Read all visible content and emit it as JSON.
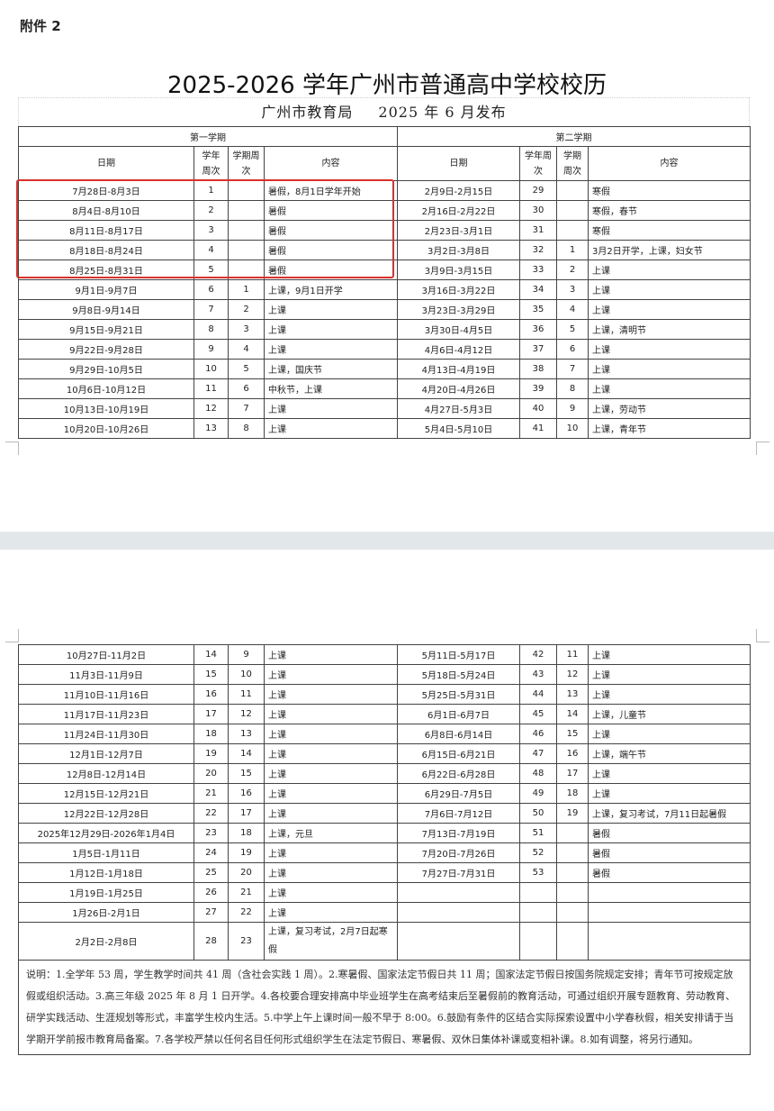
{
  "attachment": "附件 2",
  "title": "2025-2026 学年广州市普通高中学校校历",
  "subtitle": {
    "issuer": "广州市教育局",
    "date": "2025 年 6 月发布"
  },
  "headers": {
    "term1": "第一学期",
    "term2": "第二学期",
    "date": "日期",
    "year_week": "学年周次",
    "term_week": "学期周次",
    "content": "内容"
  },
  "page1_rows": [
    [
      "7月28日-8月3日",
      "1",
      "",
      "暑假，8月1日学年开始",
      "2月9日-2月15日",
      "29",
      "",
      "寒假"
    ],
    [
      "8月4日-8月10日",
      "2",
      "",
      "暑假",
      "2月16日-2月22日",
      "30",
      "",
      "寒假，春节"
    ],
    [
      "8月11日-8月17日",
      "3",
      "",
      "暑假",
      "2月23日-3月1日",
      "31",
      "",
      "寒假"
    ],
    [
      "8月18日-8月24日",
      "4",
      "",
      "暑假",
      "3月2日-3月8日",
      "32",
      "1",
      "3月2日开学，上课，妇女节"
    ],
    [
      "8月25日-8月31日",
      "5",
      "",
      "暑假",
      "3月9日-3月15日",
      "33",
      "2",
      "上课"
    ],
    [
      "9月1日-9月7日",
      "6",
      "1",
      "上课，9月1日开学",
      "3月16日-3月22日",
      "34",
      "3",
      "上课"
    ],
    [
      "9月8日-9月14日",
      "7",
      "2",
      "上课",
      "3月23日-3月29日",
      "35",
      "4",
      "上课"
    ],
    [
      "9月15日-9月21日",
      "8",
      "3",
      "上课",
      "3月30日-4月5日",
      "36",
      "5",
      "上课，清明节"
    ],
    [
      "9月22日-9月28日",
      "9",
      "4",
      "上课",
      "4月6日-4月12日",
      "37",
      "6",
      "上课"
    ],
    [
      "9月29日-10月5日",
      "10",
      "5",
      "上课，国庆节",
      "4月13日-4月19日",
      "38",
      "7",
      "上课"
    ],
    [
      "10月6日-10月12日",
      "11",
      "6",
      "中秋节，上课",
      "4月20日-4月26日",
      "39",
      "8",
      "上课"
    ],
    [
      "10月13日-10月19日",
      "12",
      "7",
      "上课",
      "4月27日-5月3日",
      "40",
      "9",
      "上课，劳动节"
    ],
    [
      "10月20日-10月26日",
      "13",
      "8",
      "上课",
      "5月4日-5月10日",
      "41",
      "10",
      "上课，青年节"
    ]
  ],
  "page2_rows": [
    [
      "10月27日-11月2日",
      "14",
      "9",
      "上课",
      "5月11日-5月17日",
      "42",
      "11",
      "上课"
    ],
    [
      "11月3日-11月9日",
      "15",
      "10",
      "上课",
      "5月18日-5月24日",
      "43",
      "12",
      "上课"
    ],
    [
      "11月10日-11月16日",
      "16",
      "11",
      "上课",
      "5月25日-5月31日",
      "44",
      "13",
      "上课"
    ],
    [
      "11月17日-11月23日",
      "17",
      "12",
      "上课",
      "6月1日-6月7日",
      "45",
      "14",
      "上课，儿童节"
    ],
    [
      "11月24日-11月30日",
      "18",
      "13",
      "上课",
      "6月8日-6月14日",
      "46",
      "15",
      "上课"
    ],
    [
      "12月1日-12月7日",
      "19",
      "14",
      "上课",
      "6月15日-6月21日",
      "47",
      "16",
      "上课，端午节"
    ],
    [
      "12月8日-12月14日",
      "20",
      "15",
      "上课",
      "6月22日-6月28日",
      "48",
      "17",
      "上课"
    ],
    [
      "12月15日-12月21日",
      "21",
      "16",
      "上课",
      "6月29日-7月5日",
      "49",
      "18",
      "上课"
    ],
    [
      "12月22日-12月28日",
      "22",
      "17",
      "上课",
      "7月6日-7月12日",
      "50",
      "19",
      "上课，复习考试，7月11日起暑假"
    ],
    [
      "2025年12月29日-2026年1月4日",
      "23",
      "18",
      "上课，元旦",
      "7月13日-7月19日",
      "51",
      "",
      "暑假"
    ],
    [
      "1月5日-1月11日",
      "24",
      "19",
      "上课",
      "7月20日-7月26日",
      "52",
      "",
      "暑假"
    ],
    [
      "1月12日-1月18日",
      "25",
      "20",
      "上课",
      "7月27日-7月31日",
      "53",
      "",
      "暑假"
    ],
    [
      "1月19日-1月25日",
      "26",
      "21",
      "上课",
      "",
      "",
      "",
      ""
    ],
    [
      "1月26日-2月1日",
      "27",
      "22",
      "上课",
      "",
      "",
      "",
      ""
    ],
    [
      "2月2日-2月8日",
      "28",
      "23",
      "上课，复习考试，2月7日起寒假",
      "",
      "",
      "",
      ""
    ]
  ],
  "notes": "说明：1.全学年 53 周，学生教学时间共 41 周（含社会实践 1 周）。2.寒暑假、国家法定节假日共 11 周；国家法定节假日按国务院规定安排；青年节可按规定放假或组织活动。3.高三年级 2025 年 8 月 1 日开学。4.各校要合理安排高中毕业班学生在高考结束后至暑假前的教育活动，可通过组织开展专题教育、劳动教育、研学实践活动、生涯规划等形式，丰富学生校内生活。5.中学上午上课时间一般不早于 8:00。6.鼓励有条件的区结合实际探索设置中小学春秋假，相关安排请于当学期开学前报市教育局备案。7.各学校严禁以任何名目任何形式组织学生在法定节假日、寒暑假、双休日集体补课或变相补课。8.如有调整，将另行通知。",
  "colors": {
    "highlight_box": "#d9302c",
    "page_gap": "#e2e8ea"
  }
}
